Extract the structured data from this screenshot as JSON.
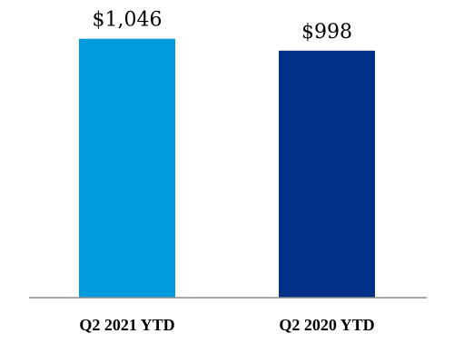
{
  "chart_data": {
    "type": "bar",
    "categories": [
      "Q2 2021 YTD",
      "Q2 2020 YTD"
    ],
    "values": [
      1046,
      998
    ],
    "data_labels": [
      "$1,046",
      "$998"
    ],
    "colors": [
      "#009ADE",
      "#003087"
    ],
    "axis_color": "#8C8C8C",
    "ylim": [
      0,
      1100
    ],
    "grid": false,
    "legend": "none",
    "title": "",
    "xlabel": "",
    "ylabel": ""
  }
}
